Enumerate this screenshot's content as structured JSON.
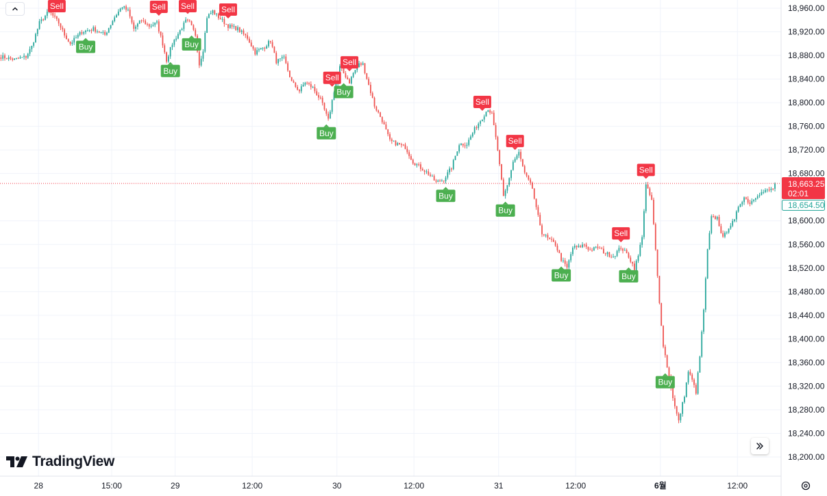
{
  "brand": {
    "name": "TradingView"
  },
  "colors": {
    "up": "#26a69a",
    "down": "#ef5350",
    "buy_badge": "#4caf50",
    "sell_badge": "#f23645",
    "grid": "#f0f3fa",
    "axis_border": "#e0e3eb",
    "price_line": "#f23645"
  },
  "icons": {
    "collapse": "chevron-up-icon",
    "scroll": "double-chevron-right-icon",
    "settings": "gear-icon",
    "logo": "tradingview-logo-icon"
  },
  "chart_data": {
    "type": "candlestick",
    "y_axis": {
      "range": [
        18180,
        18980
      ],
      "ticks": [
        18960,
        18920,
        18880,
        18840,
        18800,
        18760,
        18720,
        18680,
        18600,
        18560,
        18520,
        18480,
        18440,
        18400,
        18360,
        18320,
        18280,
        18240,
        18200
      ],
      "tick_labels": [
        "18,960.00",
        "18,920.00",
        "18,880.00",
        "18,840.00",
        "18,800.00",
        "18,760.00",
        "18,720.00",
        "18,680.00",
        "18,600.00",
        "18,560.00",
        "18,520.00",
        "18,480.00",
        "18,440.00",
        "18,400.00",
        "18,360.00",
        "18,320.00",
        "18,280.00",
        "18,240.00",
        "18,200.00"
      ]
    },
    "x_axis": {
      "ticks": [
        "28",
        "15:00",
        "29",
        "12:00",
        "30",
        "12:00",
        "31",
        "12:00",
        "6월",
        "12:00"
      ],
      "bold_ticks": [
        "6월"
      ],
      "tick_index": [
        20,
        58,
        91,
        131,
        175,
        215,
        259,
        299,
        343,
        383
      ]
    },
    "last_price": {
      "value": 18663.25,
      "label": "18,663.25",
      "countdown": "02:01"
    },
    "bid_price": {
      "value": 18654.5,
      "label": "18,654.50"
    },
    "path": [
      [
        0,
        18878
      ],
      [
        7,
        18873
      ],
      [
        13,
        18878
      ],
      [
        16,
        18895
      ],
      [
        20,
        18935
      ],
      [
        25,
        18955
      ],
      [
        30,
        18935
      ],
      [
        33,
        18915
      ],
      [
        36,
        18900
      ],
      [
        42,
        18920
      ],
      [
        48,
        18925
      ],
      [
        54,
        18915
      ],
      [
        59,
        18945
      ],
      [
        63,
        18963
      ],
      [
        66,
        18955
      ],
      [
        69,
        18925
      ],
      [
        73,
        18940
      ],
      [
        77,
        18930
      ],
      [
        81,
        18935
      ],
      [
        84,
        18900
      ],
      [
        86,
        18872
      ],
      [
        89,
        18900
      ],
      [
        93,
        18922
      ],
      [
        96,
        18938
      ],
      [
        98,
        18935
      ],
      [
        101,
        18915
      ],
      [
        103,
        18865
      ],
      [
        105,
        18890
      ],
      [
        107,
        18945
      ],
      [
        110,
        18955
      ],
      [
        113,
        18945
      ],
      [
        118,
        18930
      ],
      [
        123,
        18925
      ],
      [
        128,
        18910
      ],
      [
        132,
        18885
      ],
      [
        137,
        18895
      ],
      [
        140,
        18905
      ],
      [
        143,
        18870
      ],
      [
        147,
        18875
      ],
      [
        151,
        18835
      ],
      [
        155,
        18820
      ],
      [
        158,
        18835
      ],
      [
        162,
        18825
      ],
      [
        166,
        18805
      ],
      [
        170,
        18770
      ],
      [
        173,
        18820
      ],
      [
        176,
        18860
      ],
      [
        178,
        18850
      ],
      [
        181,
        18835
      ],
      [
        183,
        18850
      ],
      [
        186,
        18865
      ],
      [
        188,
        18865
      ],
      [
        191,
        18830
      ],
      [
        194,
        18795
      ],
      [
        198,
        18770
      ],
      [
        202,
        18735
      ],
      [
        206,
        18730
      ],
      [
        210,
        18725
      ],
      [
        214,
        18700
      ],
      [
        218,
        18690
      ],
      [
        222,
        18680
      ],
      [
        226,
        18665
      ],
      [
        230,
        18670
      ],
      [
        234,
        18690
      ],
      [
        238,
        18730
      ],
      [
        242,
        18730
      ],
      [
        246,
        18755
      ],
      [
        250,
        18775
      ],
      [
        253,
        18790
      ],
      [
        255,
        18780
      ],
      [
        258,
        18720
      ],
      [
        261,
        18640
      ],
      [
        263,
        18660
      ],
      [
        266,
        18700
      ],
      [
        269,
        18715
      ],
      [
        272,
        18680
      ],
      [
        276,
        18655
      ],
      [
        278,
        18620
      ],
      [
        281,
        18580
      ],
      [
        284,
        18570
      ],
      [
        288,
        18560
      ],
      [
        291,
        18535
      ],
      [
        294,
        18520
      ],
      [
        297,
        18555
      ],
      [
        300,
        18555
      ],
      [
        303,
        18560
      ],
      [
        306,
        18550
      ],
      [
        310,
        18555
      ],
      [
        314,
        18545
      ],
      [
        318,
        18540
      ],
      [
        322,
        18555
      ],
      [
        326,
        18540
      ],
      [
        329,
        18520
      ],
      [
        331,
        18540
      ],
      [
        333,
        18575
      ],
      [
        335,
        18660
      ],
      [
        338,
        18635
      ],
      [
        340,
        18550
      ],
      [
        342,
        18460
      ],
      [
        344,
        18390
      ],
      [
        347,
        18335
      ],
      [
        350,
        18285
      ],
      [
        352,
        18260
      ],
      [
        355,
        18305
      ],
      [
        357,
        18345
      ],
      [
        359,
        18330
      ],
      [
        361,
        18310
      ],
      [
        363,
        18370
      ],
      [
        365,
        18450
      ],
      [
        367,
        18550
      ],
      [
        369,
        18605
      ],
      [
        372,
        18605
      ],
      [
        375,
        18570
      ],
      [
        378,
        18590
      ],
      [
        381,
        18600
      ],
      [
        383,
        18625
      ],
      [
        386,
        18640
      ],
      [
        389,
        18630
      ],
      [
        393,
        18645
      ],
      [
        397,
        18650
      ],
      [
        400,
        18653
      ],
      [
        402,
        18657
      ]
    ],
    "signals": [
      {
        "type": "Sell",
        "index": 29
      },
      {
        "type": "Buy",
        "index": 44
      },
      {
        "type": "Sell",
        "index": 82
      },
      {
        "type": "Buy",
        "index": 88
      },
      {
        "type": "Sell",
        "index": 97
      },
      {
        "type": "Buy",
        "index": 99
      },
      {
        "type": "Sell",
        "index": 118
      },
      {
        "type": "Sell",
        "index": 172
      },
      {
        "type": "Buy",
        "index": 169
      },
      {
        "type": "Sell",
        "index": 181
      },
      {
        "type": "Buy",
        "index": 178
      },
      {
        "type": "Sell",
        "index": 250
      },
      {
        "type": "Buy",
        "index": 231
      },
      {
        "type": "Sell",
        "index": 267
      },
      {
        "type": "Buy",
        "index": 262
      },
      {
        "type": "Buy",
        "index": 291
      },
      {
        "type": "Sell",
        "index": 322
      },
      {
        "type": "Buy",
        "index": 326
      },
      {
        "type": "Sell",
        "index": 335
      },
      {
        "type": "Buy",
        "index": 345
      }
    ]
  }
}
